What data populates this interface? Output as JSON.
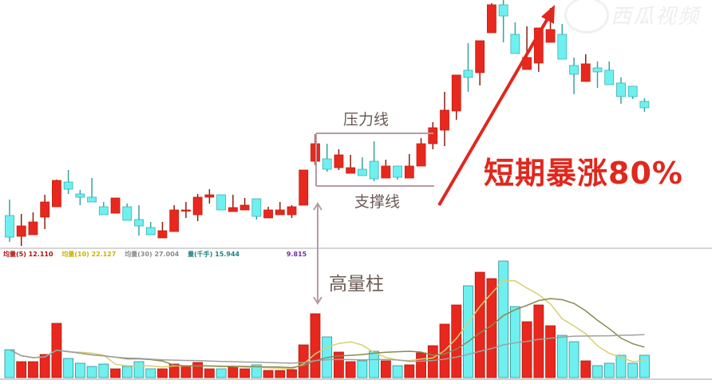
{
  "watermark": "西瓜视频",
  "annotations": {
    "resistance": "压力线",
    "support": "支撑线",
    "high_volume": "高量柱",
    "headline": "短期暴涨80%"
  },
  "volume_legend": [
    {
      "text": "均量(5) 12.110",
      "color": "#b01010"
    },
    {
      "text": "均量(10) 22.127",
      "color": "#c8b400"
    },
    {
      "text": "均量(30) 27.004",
      "color": "#8a8a8a"
    },
    {
      "text": "量(千手) 15.944",
      "color": "#208080"
    },
    {
      "text": "9.815",
      "color": "#7030a0"
    }
  ],
  "colors": {
    "up": "#e8281e",
    "down": "#6ef0f0",
    "wick_up": "#8a2010",
    "wick_down": "#3aa0a0",
    "ma5": "#d8d070",
    "ma10": "#8a8a50",
    "ma30": "#a0a0a0",
    "annotation": "#b89aa5",
    "headline": "#e0281e"
  },
  "chart_data": {
    "type": "candlestick",
    "ohlc_order": [
      "open",
      "high",
      "low",
      "close"
    ],
    "candles": [
      [
        6.0,
        8.0,
        2.7,
        3.3
      ],
      [
        3.4,
        6.2,
        2.2,
        4.7
      ],
      [
        3.6,
        6.4,
        3.6,
        5.2
      ],
      [
        5.8,
        8.6,
        4.3,
        7.7
      ],
      [
        7.1,
        10.5,
        7.1,
        10.4
      ],
      [
        10.2,
        11.7,
        8.7,
        9.3
      ],
      [
        8.7,
        9.2,
        7.3,
        8.3
      ],
      [
        8.3,
        10.7,
        7.7,
        7.7
      ],
      [
        7.1,
        7.7,
        6.1,
        6.1
      ],
      [
        6.3,
        8.2,
        6.3,
        8.2
      ],
      [
        7.1,
        7.5,
        5.4,
        5.4
      ],
      [
        5.5,
        7.3,
        3.5,
        4.7
      ],
      [
        4.5,
        5.2,
        3.6,
        3.6
      ],
      [
        3.2,
        5.2,
        3.2,
        4.1
      ],
      [
        4.0,
        7.3,
        4.0,
        6.7
      ],
      [
        6.7,
        7.7,
        5.7,
        6.7
      ],
      [
        6.1,
        8.7,
        5.3,
        8.3
      ],
      [
        8.3,
        9.3,
        7.5,
        8.6
      ],
      [
        8.6,
        8.6,
        6.7,
        6.7
      ],
      [
        6.5,
        8.6,
        6.5,
        7.0
      ],
      [
        6.7,
        8.2,
        6.7,
        7.3
      ],
      [
        8.1,
        8.1,
        5.5,
        5.9
      ],
      [
        5.7,
        7.1,
        5.7,
        6.7
      ],
      [
        6.1,
        7.7,
        6.1,
        6.7
      ],
      [
        6.1,
        7.3,
        5.7,
        7.1
      ],
      [
        7.3,
        11.7,
        7.3,
        11.7
      ],
      [
        12.8,
        16.2,
        12.3,
        15.0
      ],
      [
        13.1,
        15.0,
        11.5,
        11.8
      ],
      [
        12.0,
        14.3,
        11.7,
        13.6
      ],
      [
        11.3,
        13.6,
        11.3,
        12.0
      ],
      [
        11.8,
        13.3,
        11.0,
        11.0
      ],
      [
        12.8,
        15.3,
        10.3,
        10.6
      ],
      [
        10.7,
        13.0,
        10.7,
        12.2
      ],
      [
        12.2,
        12.2,
        10.5,
        10.8
      ],
      [
        10.7,
        13.7,
        10.7,
        12.2
      ],
      [
        12.2,
        15.7,
        12.2,
        15.0
      ],
      [
        15.0,
        17.7,
        14.3,
        17.0
      ],
      [
        16.7,
        21.5,
        14.7,
        19.2
      ],
      [
        19.1,
        23.6,
        18.0,
        23.6
      ],
      [
        24.2,
        27.6,
        21.5,
        23.3
      ],
      [
        23.9,
        27.9,
        22.3,
        27.9
      ],
      [
        28.9,
        32.6,
        28.9,
        32.4
      ],
      [
        32.4,
        33.0,
        27.7,
        31.0
      ],
      [
        28.7,
        30.2,
        26.3,
        26.3
      ],
      [
        24.3,
        29.7,
        24.3,
        25.8
      ],
      [
        25.1,
        29.5,
        24.0,
        29.5
      ],
      [
        27.7,
        32.0,
        27.7,
        29.3
      ],
      [
        28.7,
        30.0,
        25.6,
        25.6
      ],
      [
        24.8,
        25.8,
        21.2,
        23.7
      ],
      [
        22.8,
        26.2,
        22.8,
        25.0
      ],
      [
        24.5,
        25.3,
        22.0,
        24.0
      ],
      [
        24.2,
        25.3,
        22.4,
        22.4
      ],
      [
        22.6,
        23.3,
        20.0,
        20.9
      ],
      [
        22.2,
        22.2,
        20.6,
        20.9
      ],
      [
        20.3,
        20.7,
        19.0,
        19.5
      ]
    ],
    "volume": [
      3.5,
      2.0,
      2.0,
      2.9,
      6.8,
      2.4,
      1.8,
      1.4,
      1.7,
      1.1,
      1.4,
      2.0,
      1.1,
      1.1,
      1.7,
      1.5,
      1.9,
      1.1,
      1.1,
      1.4,
      1.1,
      1.6,
      0.9,
      0.9,
      1.0,
      4.1,
      8.0,
      5.1,
      3.2,
      2.0,
      2.1,
      3.3,
      2.1,
      1.5,
      1.6,
      3.1,
      4.0,
      6.7,
      9.1,
      11.5,
      13.2,
      12.4,
      14.6,
      8.9,
      7.0,
      9.1,
      6.5,
      5.3,
      4.5,
      2.1,
      1.5,
      1.8,
      2.8,
      1.8,
      2.8
    ],
    "volume_ma_periods": [
      5,
      10,
      30
    ],
    "resistance_level": 16.3,
    "support_level": 9.7,
    "grid": false
  }
}
